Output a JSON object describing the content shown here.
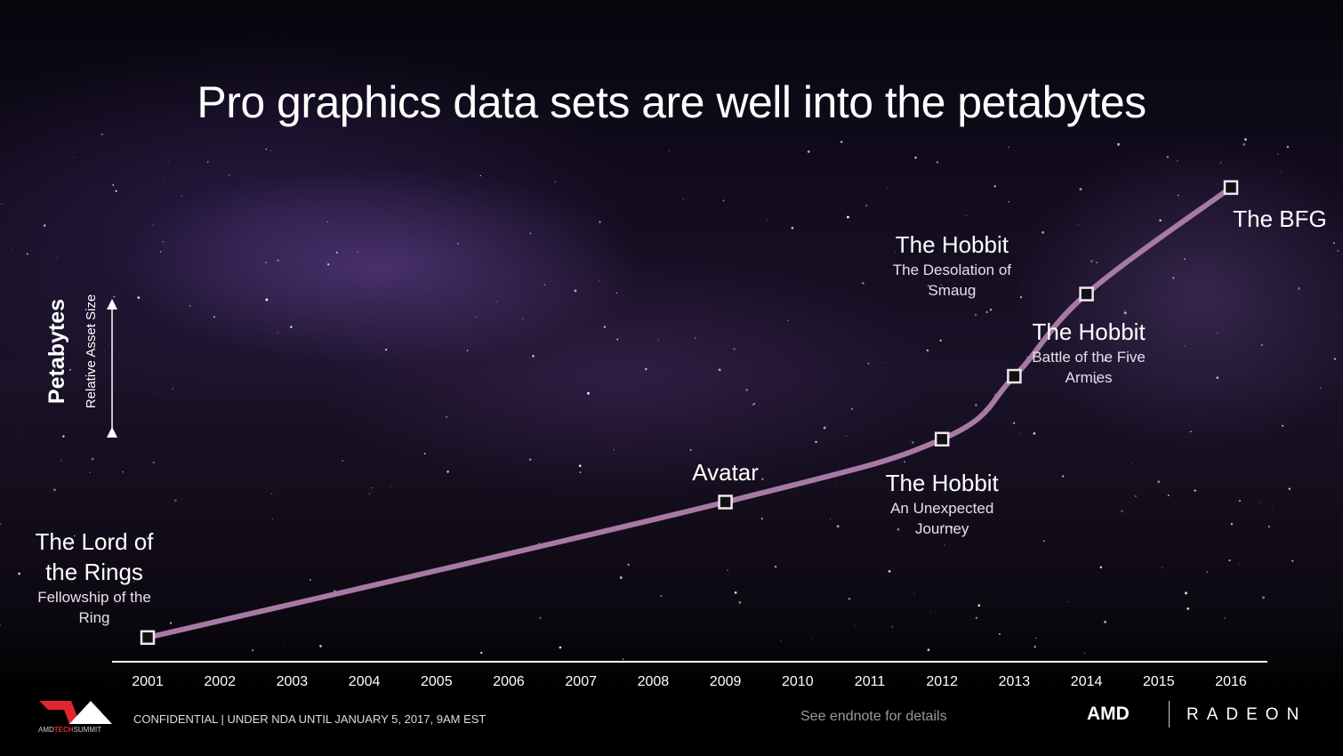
{
  "chart_data": {
    "type": "line",
    "title": "Pro graphics data sets are well into the petabytes",
    "ylabel": "Petabytes",
    "ylabel_sub": "Relative Asset Size",
    "xlabel": "",
    "categories": [
      "2001",
      "2002",
      "2003",
      "2004",
      "2005",
      "2006",
      "2007",
      "2008",
      "2009",
      "2010",
      "2011",
      "2012",
      "2013",
      "2014",
      "2015",
      "2016"
    ],
    "ylim": [
      0,
      100
    ],
    "grid": false,
    "series": [
      {
        "name": "Relative Asset Size",
        "color": "#a77aa6",
        "points": [
          {
            "x": 2001,
            "y": 5,
            "title": "The Lord of the Rings",
            "subtitle": "Fellowship of the Ring"
          },
          {
            "x": 2009,
            "y": 33,
            "title": "Avatar",
            "subtitle": ""
          },
          {
            "x": 2012,
            "y": 46,
            "title": "The Hobbit",
            "subtitle": "An Unexpected Journey"
          },
          {
            "x": 2013,
            "y": 59,
            "title": "The Hobbit",
            "subtitle": "The Desolation of Smaug"
          },
          {
            "x": 2014,
            "y": 76,
            "title": "The Hobbit",
            "subtitle": "Battle of the Five Armies"
          },
          {
            "x": 2016,
            "y": 98,
            "title": "The BFG",
            "subtitle": ""
          }
        ]
      }
    ]
  },
  "footer": {
    "logo_text_1": "AMD",
    "logo_text_2": "TECH",
    "logo_text_3": "SUMMIT",
    "confidential": "CONFIDENTIAL | UNDER NDA UNTIL JANUARY 5, 2017, 9AM EST",
    "endnote": "See endnote for details",
    "amd": "AMD",
    "radeon": "RADEON"
  }
}
